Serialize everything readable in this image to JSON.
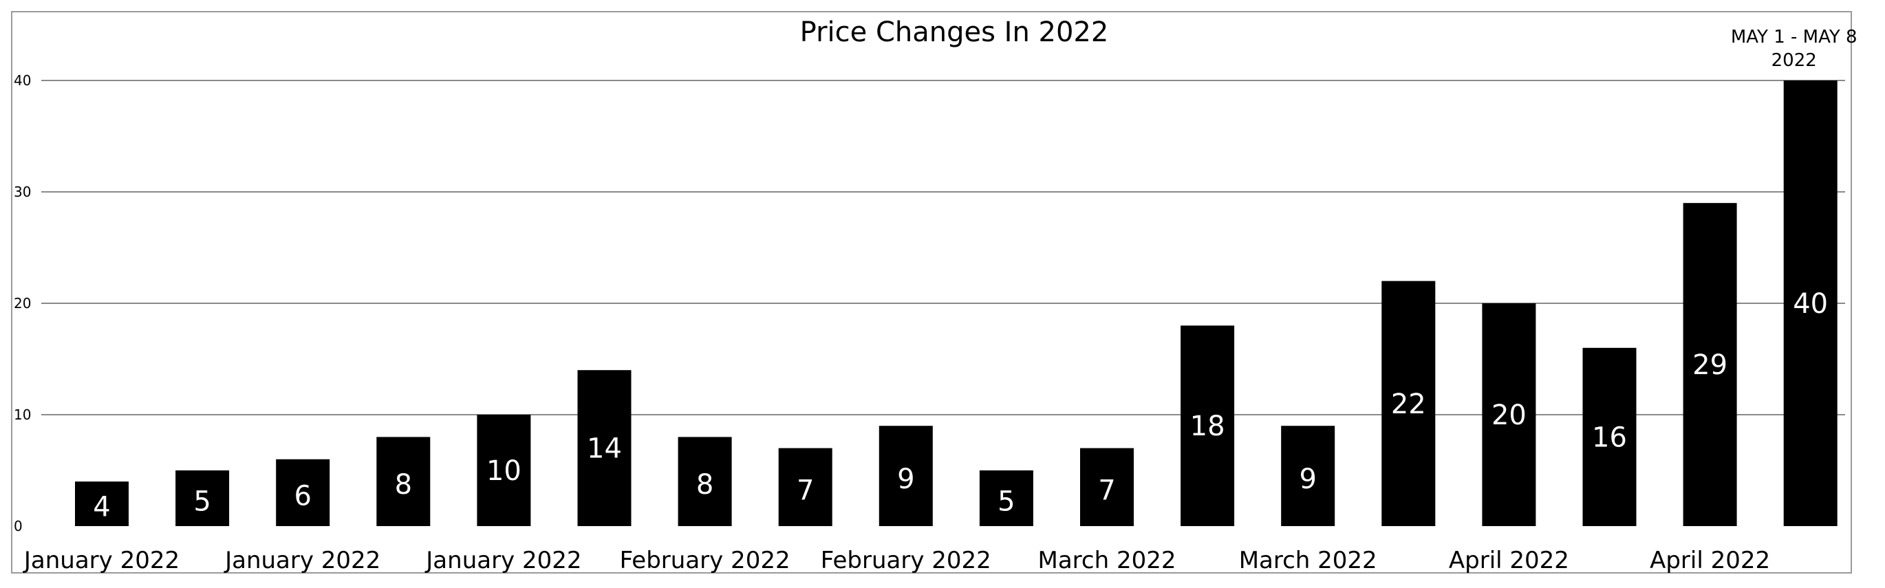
{
  "chart_data": {
    "type": "bar",
    "title": "Price Changes In 2022",
    "xlabel": "",
    "ylabel": "",
    "ylim": [
      0,
      40
    ],
    "yticks": [
      0,
      10,
      20,
      30,
      40
    ],
    "grid": true,
    "legend": "none",
    "bar_color": "#000000",
    "label_color": "#ffffff",
    "values": [
      4,
      5,
      6,
      8,
      10,
      14,
      8,
      7,
      9,
      5,
      7,
      18,
      9,
      22,
      20,
      16,
      29,
      40
    ],
    "x_tick_labels": [
      {
        "bar": 0,
        "text": "January 2022"
      },
      {
        "bar": 2,
        "text": "January 2022"
      },
      {
        "bar": 4,
        "text": "January 2022"
      },
      {
        "bar": 6,
        "text": "February 2022"
      },
      {
        "bar": 8,
        "text": "February 2022"
      },
      {
        "bar": 10,
        "text": "March 2022"
      },
      {
        "bar": 12,
        "text": "March 2022"
      },
      {
        "bar": 14,
        "text": "April 2022"
      },
      {
        "bar": 16,
        "text": "April 2022"
      }
    ],
    "annotations": [
      {
        "bar": 17,
        "lines": [
          "MAY 1 - MAY 8",
          "2022"
        ]
      }
    ]
  }
}
